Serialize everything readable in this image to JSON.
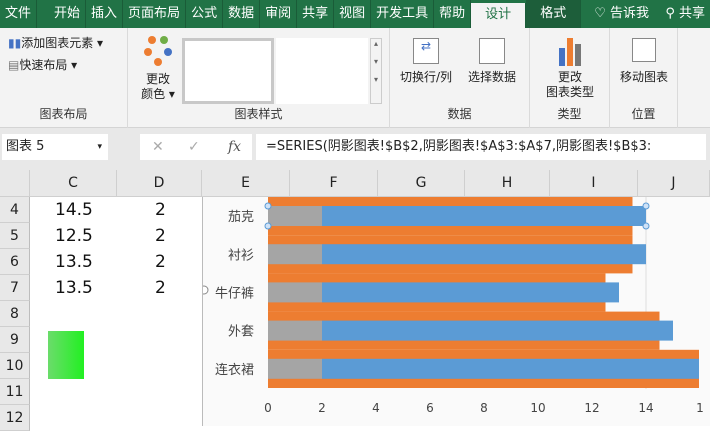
{
  "tabs": [
    "文件",
    "开始",
    "插入",
    "页面布局",
    "公式",
    "数据",
    "审阅",
    "共享",
    "视图",
    "开发工具",
    "帮助",
    "设计",
    "格式",
    "告诉我",
    "共享"
  ],
  "ribbon": {
    "add_element": "添加图表元素",
    "quick_layout": "快速布局",
    "group_layout": "图表布局",
    "change_color_1": "更改",
    "change_color_2": "颜色",
    "group_styles": "图表样式",
    "switch_rowcol": "切换行/列",
    "select_data": "选择数据",
    "group_data": "数据",
    "change_type_1": "更改",
    "change_type_2": "图表类型",
    "group_type": "类型",
    "move_chart": "移动图表",
    "group_location": "位置"
  },
  "formula_bar": {
    "name_box": "图表 5",
    "fx": "fx",
    "formula": "=SERIES(阴影图表!$B$2,阴影图表!$A$3:$A$7,阴影图表!$B$3:"
  },
  "columns": [
    "C",
    "D",
    "E",
    "F",
    "G",
    "H",
    "I",
    "J"
  ],
  "rows": [
    "4",
    "5",
    "6",
    "7",
    "8",
    "9",
    "10",
    "11"
  ],
  "cells": {
    "C": [
      "14.5",
      "12.5",
      "13.5",
      "13.5"
    ],
    "D": [
      "2",
      "2",
      "2",
      "2"
    ]
  },
  "chart_data": {
    "type": "bar",
    "orientation": "horizontal",
    "categories": [
      "茄克",
      "衬衫",
      "牛仔裤",
      "外套",
      "连衣裙"
    ],
    "series": [
      {
        "values": [
          13.5,
          13.5,
          12.5,
          14.5,
          16
        ],
        "color": "#ed7d31"
      },
      {
        "values": [
          2,
          2,
          2,
          2,
          2
        ],
        "color": "#a5a5a5"
      },
      {
        "values": [
          12,
          12,
          11,
          13,
          14
        ],
        "color": "#5b9bd5"
      }
    ],
    "xticks": [
      "0",
      "2",
      "4",
      "6",
      "8",
      "10",
      "12",
      "14",
      "1"
    ],
    "xlim": [
      0,
      16
    ]
  }
}
